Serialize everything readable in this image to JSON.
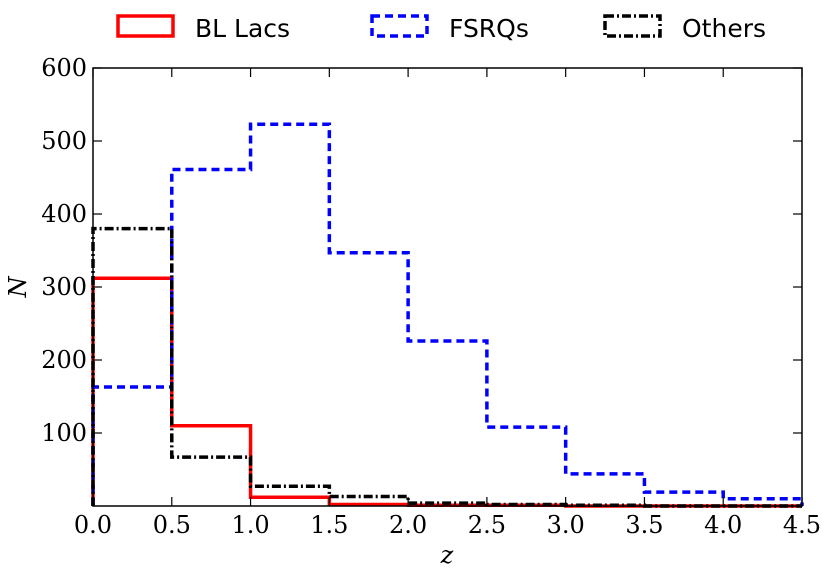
{
  "chart_data": {
    "type": "histogram",
    "title": "",
    "xlabel": "z",
    "ylabel": "N",
    "xlim": [
      0.0,
      4.5
    ],
    "ylim": [
      0,
      600
    ],
    "bin_edges": [
      0.0,
      0.5,
      1.0,
      1.5,
      2.0,
      2.5,
      3.0,
      3.5,
      4.0,
      4.5
    ],
    "x_ticks": [
      "0.0",
      "0.5",
      "1.0",
      "1.5",
      "2.0",
      "2.5",
      "3.0",
      "3.5",
      "4.0",
      "4.5"
    ],
    "y_ticks": [
      {
        "value": 100,
        "label": "100"
      },
      {
        "value": 200,
        "label": "200"
      },
      {
        "value": 300,
        "label": "300"
      },
      {
        "value": 400,
        "label": "400"
      },
      {
        "value": 500,
        "label": "500"
      },
      {
        "value": 600,
        "label": "600"
      }
    ],
    "legend_position": "top, above plot",
    "series": [
      {
        "name": "BL Lacs",
        "color": "#ff0000",
        "style": "solid",
        "values": [
          312,
          110,
          12,
          2,
          1,
          1,
          0,
          0,
          0
        ]
      },
      {
        "name": "FSRQs",
        "color": "#0000ff",
        "style": "dashed",
        "values": [
          163,
          461,
          523,
          347,
          226,
          108,
          44,
          19,
          10
        ]
      },
      {
        "name": "Others",
        "color": "#000000",
        "style": "dashdot",
        "values": [
          380,
          67,
          27,
          13,
          4,
          2,
          1,
          0,
          0
        ]
      }
    ]
  }
}
